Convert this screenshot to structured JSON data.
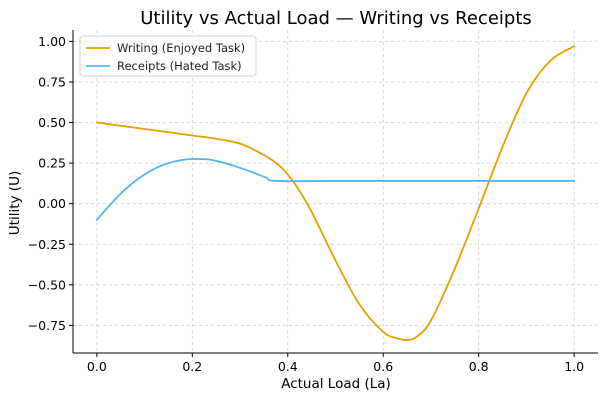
{
  "chart_data": {
    "type": "line",
    "title": "Utility vs Actual Load — Writing vs Receipts",
    "xlabel": "Actual Load (La)",
    "ylabel": "Utility (U)",
    "xlim": [
      -0.05,
      1.05
    ],
    "ylim": [
      -0.92,
      1.07
    ],
    "xticks": [
      0.0,
      0.2,
      0.4,
      0.6,
      0.8,
      1.0
    ],
    "xtick_labels": [
      "0.0",
      "0.2",
      "0.4",
      "0.6",
      "0.8",
      "1.0"
    ],
    "yticks": [
      -0.75,
      -0.5,
      -0.25,
      0.0,
      0.25,
      0.5,
      0.75,
      1.0
    ],
    "ytick_labels": [
      "−0.75",
      "−0.50",
      "−0.25",
      "0.00",
      "0.25",
      "0.50",
      "0.75",
      "1.00"
    ],
    "grid": true,
    "legend_position": "top-left",
    "series": [
      {
        "name": "Writing (Enjoyed Task)",
        "color": "#E69F00",
        "x": [
          0.0,
          0.05,
          0.1,
          0.15,
          0.2,
          0.25,
          0.3,
          0.35,
          0.38,
          0.4,
          0.42,
          0.45,
          0.5,
          0.55,
          0.6,
          0.63,
          0.65,
          0.67,
          0.7,
          0.75,
          0.8,
          0.85,
          0.9,
          0.95,
          1.0
        ],
        "y": [
          0.5,
          0.48,
          0.46,
          0.44,
          0.42,
          0.4,
          0.37,
          0.3,
          0.24,
          0.18,
          0.1,
          -0.05,
          -0.35,
          -0.62,
          -0.79,
          -0.83,
          -0.84,
          -0.82,
          -0.72,
          -0.4,
          -0.03,
          0.35,
          0.68,
          0.88,
          0.97
        ]
      },
      {
        "name": "Receipts (Hated Task)",
        "color": "#56B4E9",
        "x": [
          0.0,
          0.03,
          0.06,
          0.1,
          0.14,
          0.18,
          0.21,
          0.24,
          0.28,
          0.32,
          0.355,
          0.375,
          0.5,
          0.6,
          0.7,
          0.8,
          0.9,
          1.0
        ],
        "y": [
          -0.1,
          0.0,
          0.09,
          0.18,
          0.24,
          0.27,
          0.275,
          0.27,
          0.24,
          0.2,
          0.16,
          0.14,
          0.14,
          0.14,
          0.14,
          0.14,
          0.14,
          0.14
        ]
      }
    ]
  }
}
